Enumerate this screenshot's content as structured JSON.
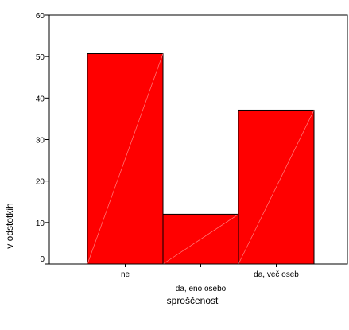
{
  "chart_data": {
    "type": "bar",
    "categories": [
      "ne",
      "da, eno osebo",
      "da, več oseb"
    ],
    "values": [
      50.7,
      12.0,
      37.1
    ],
    "title": "",
    "xlabel": "sproščenost",
    "ylabel": "v odstotkih",
    "ylim": [
      0,
      60
    ],
    "yticks": [
      "0",
      "10",
      "20",
      "30",
      "40",
      "50",
      "60"
    ],
    "grid": false,
    "legend": "none",
    "bar_color": "#ff0000",
    "bar_stroke": "#000000"
  }
}
